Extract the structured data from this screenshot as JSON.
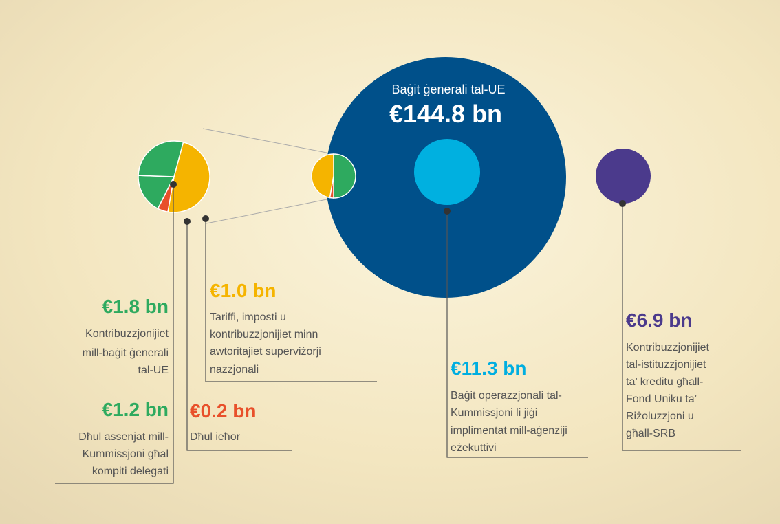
{
  "main": {
    "title": "Baġit ġenerali tal-UE",
    "amount": "€144.8 bn"
  },
  "items": [
    {
      "amount": "€1.8 bn",
      "lines": [
        "Kontribuzzjonijiet",
        "mill-baġit ġenerali",
        "tal-UE"
      ]
    },
    {
      "amount": "€1.2 bn",
      "lines": [
        "Dħul assenjat mill-",
        "Kummissjoni għal",
        "kompiti delegati"
      ]
    },
    {
      "amount": "€0.2 bn",
      "lines": [
        "Dħul ieħor"
      ]
    },
    {
      "amount": "€1.0 bn",
      "lines": [
        "Tariffi, imposti u",
        "kontribuzzjonijiet minn",
        "awtoritajiet superviżorji",
        "nazzjonali"
      ]
    },
    {
      "amount": "€11.3 bn",
      "lines": [
        "Baġit operazzjonali tal-",
        "Kummissjoni  li jiġi",
        "implimentat mill-aġenziji",
        "eżekuttivi"
      ]
    },
    {
      "amount": "€6.9 bn",
      "lines": [
        "Kontribuzzjonijiet",
        "tal-istituzzjonijiet",
        "ta’ kreditu għall-",
        "Fond Uniku ta’",
        "Riżoluzzjoni u",
        "għall-SRB"
      ]
    }
  ]
}
